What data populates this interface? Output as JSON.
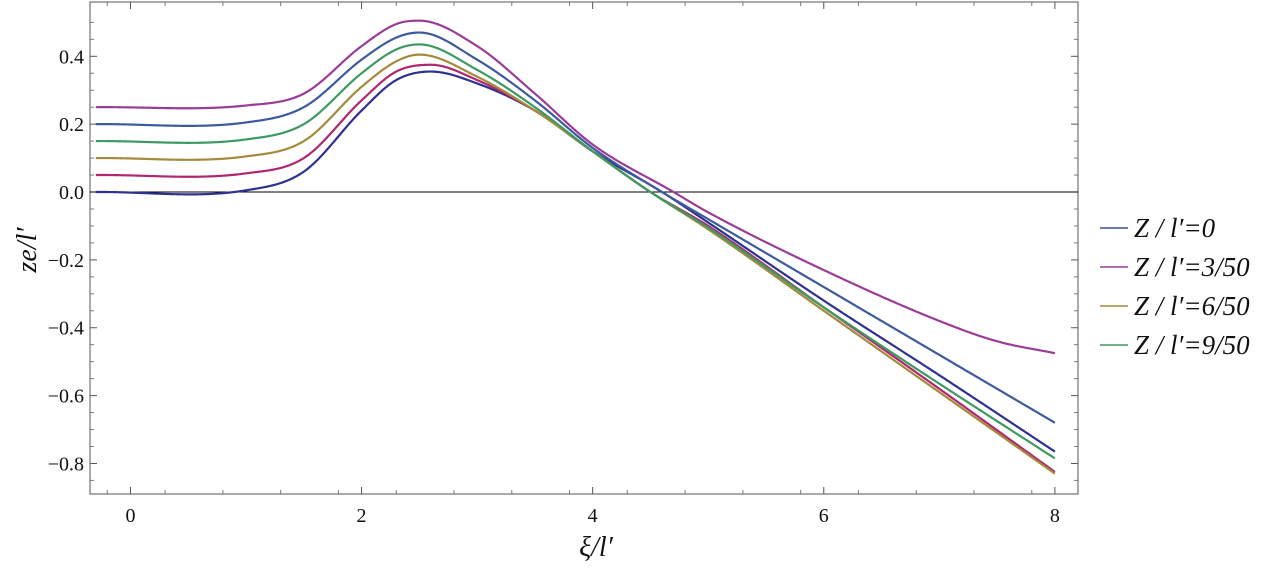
{
  "chart_data": {
    "type": "line",
    "xlabel": "ξ/l′",
    "ylabel": "ze/l′",
    "xlim": [
      -0.35,
      8.2
    ],
    "ylim": [
      -0.89,
      0.56
    ],
    "x_ticks": [
      0,
      2,
      4,
      6,
      8
    ],
    "y_ticks": [
      -0.8,
      -0.6,
      -0.4,
      -0.2,
      0.0,
      0.2,
      0.4
    ],
    "x_tick_labels": [
      "0",
      "2",
      "4",
      "6",
      "8"
    ],
    "y_tick_labels": [
      "−0.8",
      "−0.6",
      "−0.4",
      "−0.2",
      "0.0",
      "0.2",
      "0.4"
    ],
    "zero_line": true,
    "legend_position": "right",
    "legend": [
      {
        "label": "Z / l′=0",
        "color": "#3d4a9a"
      },
      {
        "label": "Z / l′=3/50",
        "color": "#9b3c96"
      },
      {
        "label": "Z / l′=6/50",
        "color": "#a48a3c"
      },
      {
        "label": "Z / l′=9/50",
        "color": "#3d9a60"
      }
    ],
    "series": [
      {
        "color": "#2e3191",
        "values": [
          [
            -0.3,
            0.0
          ],
          [
            1.0,
            0.005
          ],
          [
            1.5,
            0.06
          ],
          [
            2.0,
            0.24
          ],
          [
            2.3,
            0.33
          ],
          [
            2.6,
            0.355
          ],
          [
            3.0,
            0.32
          ],
          [
            3.5,
            0.24
          ],
          [
            4.0,
            0.12
          ],
          [
            4.6,
            0.0
          ],
          [
            5.0,
            -0.09
          ],
          [
            6.0,
            -0.32
          ],
          [
            7.0,
            -0.54
          ],
          [
            8.0,
            -0.765
          ]
        ]
      },
      {
        "color": "#b0276f",
        "values": [
          [
            -0.3,
            0.05
          ],
          [
            1.0,
            0.055
          ],
          [
            1.5,
            0.1
          ],
          [
            2.0,
            0.27
          ],
          [
            2.3,
            0.355
          ],
          [
            2.6,
            0.375
          ],
          [
            3.0,
            0.33
          ],
          [
            3.5,
            0.24
          ],
          [
            4.0,
            0.12
          ],
          [
            4.5,
            0.0
          ],
          [
            5.0,
            -0.1
          ],
          [
            6.0,
            -0.34
          ],
          [
            7.0,
            -0.58
          ],
          [
            8.0,
            -0.825
          ]
        ]
      },
      {
        "color": "#a48a3c",
        "values": [
          [
            -0.3,
            0.1
          ],
          [
            1.0,
            0.105
          ],
          [
            1.5,
            0.15
          ],
          [
            2.0,
            0.31
          ],
          [
            2.3,
            0.385
          ],
          [
            2.5,
            0.405
          ],
          [
            3.0,
            0.34
          ],
          [
            3.5,
            0.24
          ],
          [
            4.0,
            0.12
          ],
          [
            4.5,
            0.0
          ],
          [
            5.0,
            -0.11
          ],
          [
            6.0,
            -0.35
          ],
          [
            7.0,
            -0.59
          ],
          [
            8.0,
            -0.83
          ]
        ]
      },
      {
        "color": "#3d9a60",
        "values": [
          [
            -0.3,
            0.15
          ],
          [
            1.0,
            0.155
          ],
          [
            1.5,
            0.2
          ],
          [
            2.0,
            0.35
          ],
          [
            2.3,
            0.42
          ],
          [
            2.5,
            0.435
          ],
          [
            3.0,
            0.36
          ],
          [
            3.5,
            0.25
          ],
          [
            4.0,
            0.12
          ],
          [
            4.5,
            0.0
          ],
          [
            5.0,
            -0.105
          ],
          [
            6.0,
            -0.34
          ],
          [
            7.0,
            -0.565
          ],
          [
            8.0,
            -0.785
          ]
        ]
      },
      {
        "color": "#3d5a9e",
        "values": [
          [
            -0.3,
            0.2
          ],
          [
            1.0,
            0.205
          ],
          [
            1.5,
            0.25
          ],
          [
            2.0,
            0.39
          ],
          [
            2.3,
            0.455
          ],
          [
            2.5,
            0.47
          ],
          [
            3.0,
            0.39
          ],
          [
            3.5,
            0.27
          ],
          [
            4.0,
            0.13
          ],
          [
            4.6,
            0.0
          ],
          [
            5.0,
            -0.08
          ],
          [
            6.0,
            -0.28
          ],
          [
            7.0,
            -0.48
          ],
          [
            8.0,
            -0.68
          ]
        ]
      },
      {
        "color": "#9b3c96",
        "values": [
          [
            -0.3,
            0.25
          ],
          [
            1.0,
            0.255
          ],
          [
            1.5,
            0.29
          ],
          [
            2.0,
            0.43
          ],
          [
            2.3,
            0.495
          ],
          [
            2.5,
            0.505
          ],
          [
            3.0,
            0.43
          ],
          [
            3.5,
            0.29
          ],
          [
            4.0,
            0.14
          ],
          [
            4.7,
            0.0
          ],
          [
            5.0,
            -0.06
          ],
          [
            6.0,
            -0.23
          ],
          [
            7.0,
            -0.38
          ],
          [
            7.5,
            -0.44
          ],
          [
            8.0,
            -0.475
          ]
        ]
      }
    ]
  }
}
